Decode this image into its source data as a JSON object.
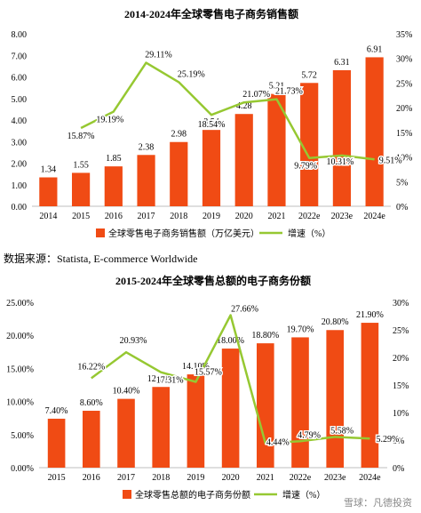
{
  "source_note": "数据来源：Statista, E-commerce Worldwide",
  "watermark": "雪球：凡德投资",
  "colors": {
    "bar": "#F04B14",
    "line": "#96C832",
    "text": "#000000",
    "axis": "#BFBFBF"
  },
  "chart_data": [
    {
      "type": "bar",
      "title": "2014-2024年全球零售电子商务销售额",
      "categories": [
        "2014",
        "2015",
        "2016",
        "2017",
        "2018",
        "2019",
        "2020",
        "2021",
        "2022e",
        "2023e",
        "2024e"
      ],
      "series": [
        {
          "name": "全球零售电子商务销售额（万亿美元）",
          "type": "bar",
          "axis": "left",
          "values": [
            1.34,
            1.55,
            1.85,
            2.38,
            2.98,
            3.54,
            4.28,
            5.21,
            5.72,
            6.31,
            6.91
          ],
          "labels": [
            "1.34",
            "1.55",
            "1.85",
            "2.38",
            "2.98",
            "3.54",
            "4.28",
            "5.21",
            "5.72",
            "6.31",
            "6.91"
          ]
        },
        {
          "name": "增速（%）",
          "type": "line",
          "axis": "right",
          "values": [
            null,
            15.87,
            19.19,
            29.11,
            25.19,
            18.54,
            21.07,
            21.73,
            9.79,
            10.31,
            9.51
          ],
          "labels": [
            "",
            "15.87%",
            "19.19%",
            "29.11%",
            "25.19%",
            "18.54%",
            "21.07%",
            "21.73%",
            "9.79%",
            "10.31%",
            "9.51%"
          ]
        }
      ],
      "ylim": [
        0,
        8
      ],
      "yticks": [
        "0.00",
        "1.00",
        "2.00",
        "3.00",
        "4.00",
        "5.00",
        "6.00",
        "7.00",
        "8.00"
      ],
      "y2lim": [
        0,
        35
      ],
      "y2ticks": [
        "0%",
        "5%",
        "10%",
        "15%",
        "20%",
        "25%",
        "30%",
        "35%"
      ],
      "legend_position": "bottom"
    },
    {
      "type": "bar",
      "title": "2015-2024年全球零售总额的电子商务份额",
      "categories": [
        "2015",
        "2016",
        "2017",
        "2018",
        "2019",
        "2020",
        "2021",
        "2022e",
        "2023e",
        "2024e"
      ],
      "series": [
        {
          "name": "全球零售总额的电子商务份额",
          "type": "bar",
          "axis": "left",
          "values": [
            7.4,
            8.6,
            10.4,
            12.2,
            14.1,
            18.0,
            18.8,
            19.7,
            20.8,
            21.9
          ],
          "labels": [
            "7.40%",
            "8.60%",
            "10.40%",
            "12.20%",
            "14.10%",
            "18.00%",
            "18.80%",
            "19.70%",
            "20.80%",
            "21.90%"
          ]
        },
        {
          "name": "增速（%）",
          "type": "line",
          "axis": "right",
          "values": [
            null,
            16.22,
            20.93,
            17.31,
            15.57,
            27.66,
            4.44,
            4.79,
            5.58,
            5.29
          ],
          "labels": [
            "",
            "16.22%",
            "20.93%",
            "17.31%",
            "15.57%",
            "27.66%",
            "4.44%",
            "4.79%",
            "5.58%",
            "5.29%"
          ]
        }
      ],
      "ylim": [
        0,
        25
      ],
      "yticks": [
        "0.00%",
        "5.00%",
        "10.00%",
        "15.00%",
        "20.00%",
        "25.00%"
      ],
      "y2lim": [
        0,
        30
      ],
      "y2ticks": [
        "0%",
        "5%",
        "10%",
        "15%",
        "20%",
        "25%",
        "30%"
      ],
      "legend_position": "bottom"
    }
  ]
}
